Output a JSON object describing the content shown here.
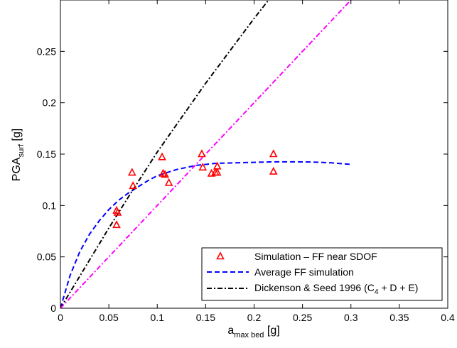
{
  "chart_data": {
    "type": "scatter",
    "xlabel": {
      "main": "a",
      "sub": "max bed",
      "unit": " [g]"
    },
    "ylabel": {
      "main": "PGA",
      "sub": "surf",
      "unit": " [g]"
    },
    "xlim": [
      0,
      0.4
    ],
    "ylim": [
      0,
      0.3
    ],
    "x_ticks": [
      0,
      0.05,
      0.1,
      0.15,
      0.2,
      0.25,
      0.3,
      0.35,
      0.4
    ],
    "x_tick_labels": [
      "0",
      "0.05",
      "0.1",
      "0.15",
      "0.2",
      "0.25",
      "0.3",
      "0.35",
      "0.4"
    ],
    "y_ticks": [
      0,
      0.05,
      0.1,
      0.15,
      0.2,
      0.25
    ],
    "y_tick_labels": [
      "0",
      "0.05",
      "0.1",
      "0.15",
      "0.2",
      "0.25"
    ],
    "grid": false,
    "legend_position": "bottom-right",
    "series": [
      {
        "name": "Simulation – FF near SDOF",
        "kind": "markers",
        "marker": "triangle-open",
        "color": "#ff0000",
        "points": [
          [
            0.058,
            0.095
          ],
          [
            0.059,
            0.093
          ],
          [
            0.058,
            0.081
          ],
          [
            0.074,
            0.132
          ],
          [
            0.075,
            0.119
          ],
          [
            0.105,
            0.147
          ],
          [
            0.106,
            0.131
          ],
          [
            0.108,
            0.13
          ],
          [
            0.112,
            0.122
          ],
          [
            0.146,
            0.15
          ],
          [
            0.147,
            0.137
          ],
          [
            0.156,
            0.131
          ],
          [
            0.16,
            0.132
          ],
          [
            0.162,
            0.138
          ],
          [
            0.162,
            0.132
          ],
          [
            0.22,
            0.15
          ],
          [
            0.22,
            0.133
          ]
        ]
      },
      {
        "name": "Average FF simulation",
        "kind": "line",
        "dash": "dashed",
        "color": "#0000ff",
        "points": [
          [
            0,
            0
          ],
          [
            0.01,
            0.032
          ],
          [
            0.02,
            0.055
          ],
          [
            0.03,
            0.072
          ],
          [
            0.04,
            0.085
          ],
          [
            0.05,
            0.096
          ],
          [
            0.06,
            0.105
          ],
          [
            0.07,
            0.112
          ],
          [
            0.08,
            0.118
          ],
          [
            0.09,
            0.124
          ],
          [
            0.1,
            0.129
          ],
          [
            0.12,
            0.135
          ],
          [
            0.14,
            0.139
          ],
          [
            0.16,
            0.141
          ],
          [
            0.18,
            0.1415
          ],
          [
            0.2,
            0.142
          ],
          [
            0.22,
            0.1425
          ],
          [
            0.24,
            0.1425
          ],
          [
            0.26,
            0.1423
          ],
          [
            0.28,
            0.1415
          ],
          [
            0.3,
            0.14
          ]
        ]
      },
      {
        "name": "Dickenson & Seed 1996 (C4 + D + E)",
        "legend_text": {
          "pre": "Dickenson & Seed 1996 (C",
          "sub": "4",
          "post": " + D + E)"
        },
        "kind": "line",
        "dash": "dash-dot",
        "color": "#000000",
        "points": [
          [
            0,
            0
          ],
          [
            0.05,
            0.078
          ],
          [
            0.07,
            0.108
          ],
          [
            0.1,
            0.152
          ],
          [
            0.15,
            0.219
          ],
          [
            0.2,
            0.282
          ],
          [
            0.215,
            0.3
          ]
        ]
      },
      {
        "kind": "line",
        "dash": "dash-dot",
        "color": "#ff00ff",
        "points": [
          [
            0,
            0
          ],
          [
            0.3,
            0.3
          ]
        ]
      }
    ]
  }
}
